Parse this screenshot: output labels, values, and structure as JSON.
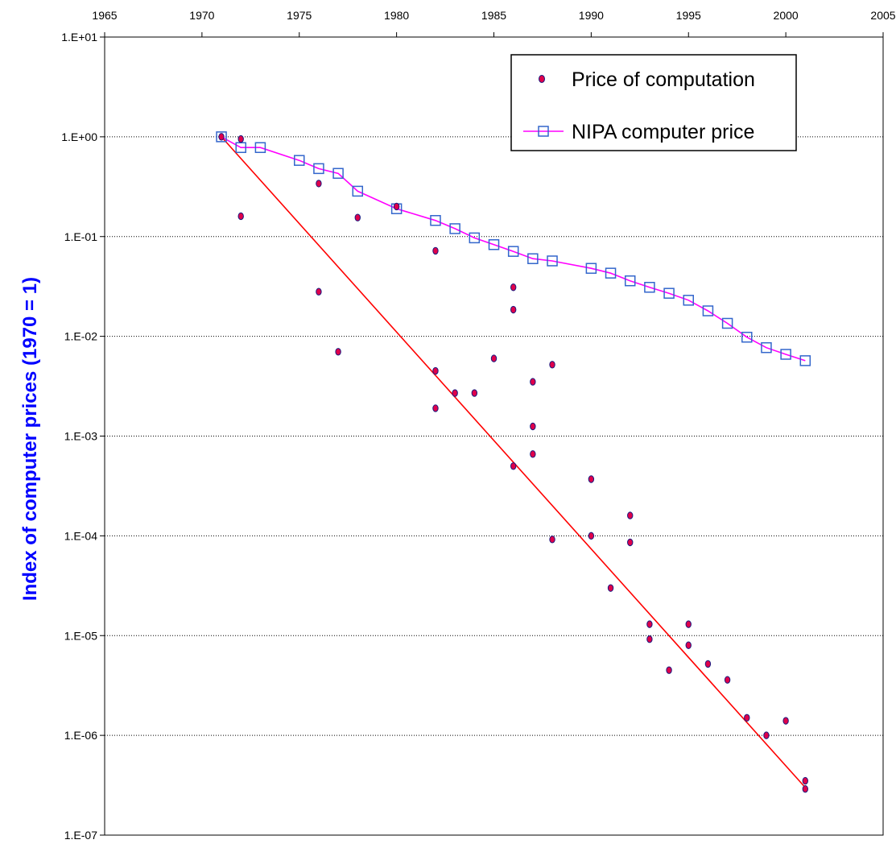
{
  "chart_data": {
    "type": "scatter",
    "title": "",
    "xlabel": "",
    "ylabel": "Index of computer prices (1970 = 1)",
    "xlim": [
      1965,
      2005
    ],
    "x_ticks": [
      1965,
      1970,
      1975,
      1980,
      1985,
      1990,
      1995,
      2000,
      2005
    ],
    "x_axis_position": "top",
    "ylim": [
      1e-07,
      10
    ],
    "y_scale": "log",
    "y_ticks": [
      "1.E-07",
      "1.E-06",
      "1.E-05",
      "1.E-04",
      "1.E-03",
      "1.E-02",
      "1.E-01",
      "1.E+00",
      "1.E+01"
    ],
    "grid": "horizontal dotted at each decade",
    "legend_position": "top-right",
    "series": [
      {
        "name": "Price of computation",
        "kind": "scatter",
        "marker_fill": "#e0004a",
        "marker_edge": "#1a1a80",
        "points": [
          [
            1971,
            1.0
          ],
          [
            1972,
            0.95
          ],
          [
            1972,
            0.16
          ],
          [
            1976,
            0.34
          ],
          [
            1976,
            0.028
          ],
          [
            1977,
            0.007
          ],
          [
            1978,
            0.155
          ],
          [
            1980,
            0.2
          ],
          [
            1982,
            0.072
          ],
          [
            1982,
            0.0045
          ],
          [
            1982,
            0.0019
          ],
          [
            1983,
            0.0027
          ],
          [
            1984,
            0.0027
          ],
          [
            1985,
            0.006
          ],
          [
            1986,
            0.031
          ],
          [
            1986,
            0.0185
          ],
          [
            1986,
            0.0005
          ],
          [
            1987,
            0.0035
          ],
          [
            1987,
            0.00125
          ],
          [
            1987,
            0.00066
          ],
          [
            1988,
            0.0052
          ],
          [
            1988,
            9.2e-05
          ],
          [
            1990,
            0.00037
          ],
          [
            1990,
            0.0001
          ],
          [
            1991,
            3e-05
          ],
          [
            1992,
            0.00016
          ],
          [
            1992,
            8.6e-05
          ],
          [
            1993,
            1.3e-05
          ],
          [
            1993,
            9.2e-06
          ],
          [
            1994,
            4.5e-06
          ],
          [
            1995,
            1.3e-05
          ],
          [
            1995,
            8e-06
          ],
          [
            1996,
            5.2e-06
          ],
          [
            1997,
            3.6e-06
          ],
          [
            1998,
            1.5e-06
          ],
          [
            1999,
            1e-06
          ],
          [
            2000,
            1.4e-06
          ],
          [
            2001,
            3.5e-07
          ],
          [
            2001,
            2.9e-07
          ]
        ]
      },
      {
        "name": "NIPA computer price",
        "kind": "line-marker",
        "line_color": "#ff00ff",
        "marker_edge": "#3366cc",
        "points": [
          [
            1971,
            1.0
          ],
          [
            1972,
            0.78
          ],
          [
            1973,
            0.78
          ],
          [
            1975,
            0.58
          ],
          [
            1976,
            0.48
          ],
          [
            1977,
            0.43
          ],
          [
            1978,
            0.285
          ],
          [
            1980,
            0.19
          ],
          [
            1982,
            0.145
          ],
          [
            1983,
            0.12
          ],
          [
            1984,
            0.097
          ],
          [
            1985,
            0.083
          ],
          [
            1986,
            0.071
          ],
          [
            1987,
            0.06
          ],
          [
            1988,
            0.057
          ],
          [
            1990,
            0.048
          ],
          [
            1991,
            0.043
          ],
          [
            1992,
            0.036
          ],
          [
            1993,
            0.031
          ],
          [
            1994,
            0.027
          ],
          [
            1995,
            0.023
          ],
          [
            1996,
            0.018
          ],
          [
            1997,
            0.0135
          ],
          [
            1998,
            0.0098
          ],
          [
            1999,
            0.0077
          ],
          [
            2000,
            0.0066
          ],
          [
            2001,
            0.0057
          ]
        ]
      },
      {
        "kind": "trend-line",
        "line_color": "#ff0000",
        "points": [
          [
            1971,
            1.0
          ],
          [
            2001,
            3e-07
          ]
        ]
      }
    ]
  }
}
